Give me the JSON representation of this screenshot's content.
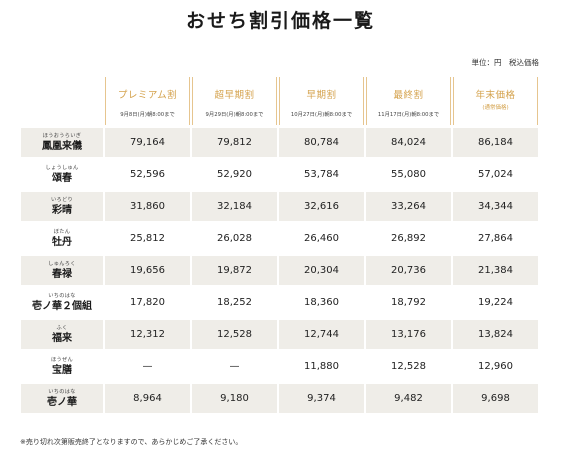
{
  "title": "おせち割引価格一覧",
  "unit_note": "単位：円　税込価格",
  "columns": [
    {
      "label": "プレミアム割",
      "sub": "9月8日(月)朝8:00まで"
    },
    {
      "label": "超早期割",
      "sub": "9月29日(月)朝8:00まで"
    },
    {
      "label": "早期割",
      "sub": "10月27日(月)朝8:00まで"
    },
    {
      "label": "最終割",
      "sub": "11月17日(月)朝8:00まで"
    },
    {
      "label": "年末価格",
      "sub": "(通常価格)"
    }
  ],
  "rows": [
    {
      "ruby": "ほうおうらいぎ",
      "name": "鳳凰来儀",
      "prices": [
        "79,164",
        "79,812",
        "80,784",
        "84,024",
        "86,184"
      ]
    },
    {
      "ruby": "しょうしゅん",
      "name": "頌春",
      "prices": [
        "52,596",
        "52,920",
        "53,784",
        "55,080",
        "57,024"
      ]
    },
    {
      "ruby": "いろどり",
      "name": "彩晴",
      "prices": [
        "31,860",
        "32,184",
        "32,616",
        "33,264",
        "34,344"
      ]
    },
    {
      "ruby": "ぼたん",
      "name": "牡丹",
      "prices": [
        "25,812",
        "26,028",
        "26,460",
        "26,892",
        "27,864"
      ]
    },
    {
      "ruby": "しゅんろく",
      "name": "春禄",
      "prices": [
        "19,656",
        "19,872",
        "20,304",
        "20,736",
        "21,384"
      ]
    },
    {
      "ruby": "いちのはな",
      "name": "壱ノ華２個組",
      "prices": [
        "17,820",
        "18,252",
        "18,360",
        "18,792",
        "19,224"
      ]
    },
    {
      "ruby": "ふく",
      "name": "福来",
      "prices": [
        "12,312",
        "12,528",
        "12,744",
        "13,176",
        "13,824"
      ]
    },
    {
      "ruby": "ほうぜん",
      "name": "宝膳",
      "prices": [
        "—",
        "—",
        "11,880",
        "12,528",
        "12,960"
      ]
    },
    {
      "ruby": "いちのはな",
      "name": "壱ノ華",
      "prices": [
        "8,964",
        "9,180",
        "9,374",
        "9,482",
        "9,698"
      ]
    }
  ],
  "footnote": "※売り切れ次第販売終了となりますので、あらかじめご了承ください。",
  "colors": {
    "accent": "#d4a24c",
    "row_shade": "#efede8"
  }
}
